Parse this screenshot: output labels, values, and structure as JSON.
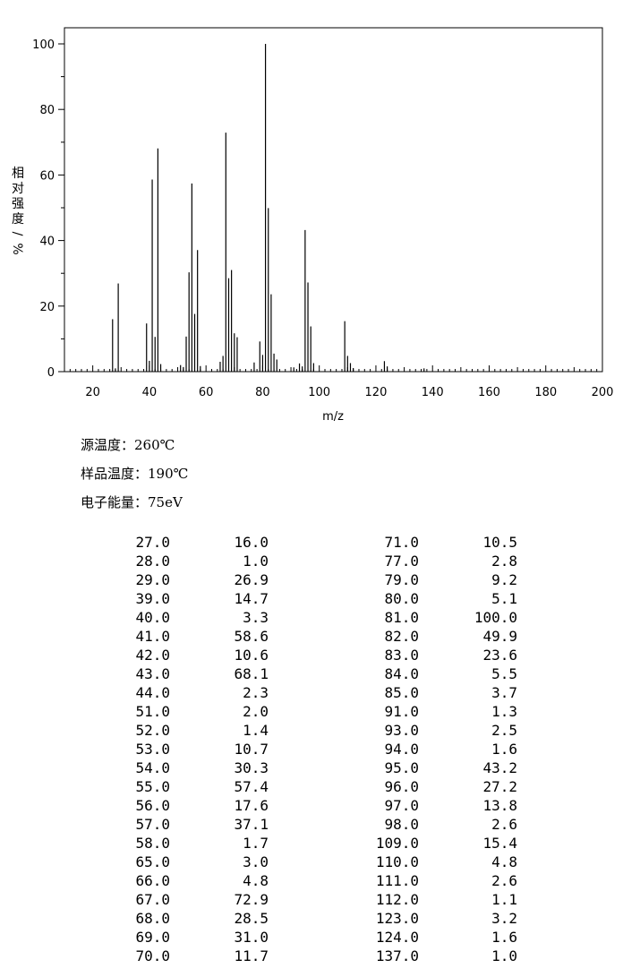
{
  "chart_data": {
    "type": "bar",
    "xlabel": "m/z",
    "ylabel": "相对强度/%",
    "xlim": [
      10,
      200
    ],
    "ylim": [
      0,
      100
    ],
    "x_ticks": [
      20,
      40,
      60,
      80,
      100,
      120,
      140,
      160,
      180,
      200
    ],
    "y_ticks": [
      0,
      20,
      40,
      60,
      80,
      100
    ],
    "x": [
      27,
      28,
      29,
      39,
      40,
      41,
      42,
      43,
      44,
      51,
      52,
      53,
      54,
      55,
      56,
      57,
      58,
      65,
      66,
      67,
      68,
      69,
      70,
      71,
      77,
      79,
      80,
      81,
      82,
      83,
      84,
      85,
      91,
      93,
      94,
      95,
      96,
      97,
      98,
      109,
      110,
      111,
      112,
      123,
      124,
      137
    ],
    "values": [
      16.0,
      1.0,
      26.9,
      14.7,
      3.3,
      58.6,
      10.6,
      68.1,
      2.3,
      2.0,
      1.4,
      10.7,
      30.3,
      57.4,
      17.6,
      37.1,
      1.7,
      3.0,
      4.8,
      72.9,
      28.5,
      31.0,
      11.7,
      10.5,
      2.8,
      9.2,
      5.1,
      100.0,
      49.9,
      23.6,
      5.5,
      3.7,
      1.3,
      2.5,
      1.6,
      43.2,
      27.2,
      13.8,
      2.6,
      15.4,
      4.8,
      2.6,
      1.1,
      3.2,
      1.6,
      1.0
    ],
    "grid": false
  },
  "conditions": {
    "source_temp": "源温度：260℃",
    "sample_temp": "样品温度：190℃",
    "electron_energy": "电子能量：75eV"
  },
  "peak_table": {
    "left": [
      [
        "27.0",
        "16.0"
      ],
      [
        "28.0",
        "1.0"
      ],
      [
        "29.0",
        "26.9"
      ],
      [
        "39.0",
        "14.7"
      ],
      [
        "40.0",
        "3.3"
      ],
      [
        "41.0",
        "58.6"
      ],
      [
        "42.0",
        "10.6"
      ],
      [
        "43.0",
        "68.1"
      ],
      [
        "44.0",
        "2.3"
      ],
      [
        "51.0",
        "2.0"
      ],
      [
        "52.0",
        "1.4"
      ],
      [
        "53.0",
        "10.7"
      ],
      [
        "54.0",
        "30.3"
      ],
      [
        "55.0",
        "57.4"
      ],
      [
        "56.0",
        "17.6"
      ],
      [
        "57.0",
        "37.1"
      ],
      [
        "58.0",
        "1.7"
      ],
      [
        "65.0",
        "3.0"
      ],
      [
        "66.0",
        "4.8"
      ],
      [
        "67.0",
        "72.9"
      ],
      [
        "68.0",
        "28.5"
      ],
      [
        "69.0",
        "31.0"
      ],
      [
        "70.0",
        "11.7"
      ]
    ],
    "right": [
      [
        "71.0",
        "10.5"
      ],
      [
        "77.0",
        "2.8"
      ],
      [
        "79.0",
        "9.2"
      ],
      [
        "80.0",
        "5.1"
      ],
      [
        "81.0",
        "100.0"
      ],
      [
        "82.0",
        "49.9"
      ],
      [
        "83.0",
        "23.6"
      ],
      [
        "84.0",
        "5.5"
      ],
      [
        "85.0",
        "3.7"
      ],
      [
        "91.0",
        "1.3"
      ],
      [
        "93.0",
        "2.5"
      ],
      [
        "94.0",
        "1.6"
      ],
      [
        "95.0",
        "43.2"
      ],
      [
        "96.0",
        "27.2"
      ],
      [
        "97.0",
        "13.8"
      ],
      [
        "98.0",
        "2.6"
      ],
      [
        "109.0",
        "15.4"
      ],
      [
        "110.0",
        "4.8"
      ],
      [
        "111.0",
        "2.6"
      ],
      [
        "112.0",
        "1.1"
      ],
      [
        "123.0",
        "3.2"
      ],
      [
        "124.0",
        "1.6"
      ],
      [
        "137.0",
        "1.0"
      ]
    ]
  }
}
